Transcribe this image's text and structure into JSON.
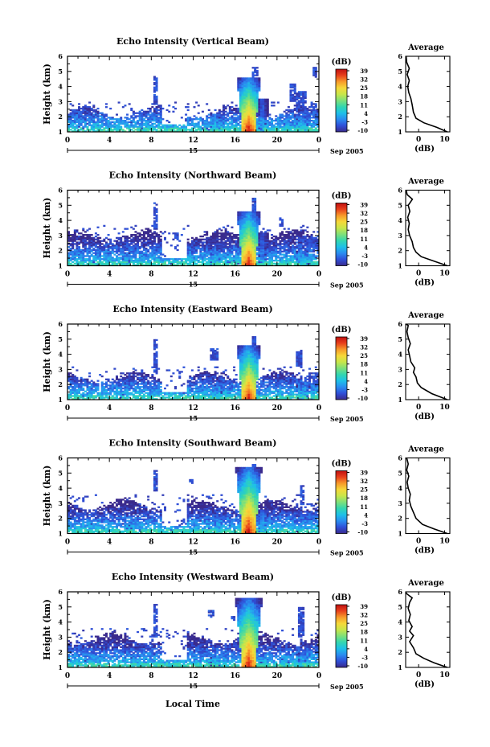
{
  "chart_data": {
    "type": "heatmap",
    "x_axis_label": "Local Time",
    "x_ticks": [
      "0",
      "4",
      "8",
      "12",
      "16",
      "20",
      "0"
    ],
    "x_range_hours": [
      0,
      24
    ],
    "date_day_label": "15",
    "date_label": "Sep 2005",
    "y_axis_label": "Height (km)",
    "y_ticks": [
      "1",
      "2",
      "3",
      "4",
      "5",
      "6"
    ],
    "y_range_km": [
      1,
      6
    ],
    "colorbar": {
      "title": "(dB)",
      "ticks": [
        "39",
        "32",
        "25",
        "18",
        "11",
        "4",
        "-3",
        "-10"
      ],
      "range_db": [
        -10,
        39
      ],
      "colors": [
        "#3a2a8c",
        "#2f4fd8",
        "#2a8cf0",
        "#1ec0e8",
        "#33d6b0",
        "#7ee07a",
        "#c8e64a",
        "#f6d83a",
        "#f79a2a",
        "#e8401c",
        "#c01010"
      ]
    },
    "average_panel": {
      "title": "Average",
      "xlabel": "(dB)",
      "x_ticks": [
        "0",
        "10"
      ],
      "x_range_db": [
        -5,
        12
      ],
      "y_range_km": [
        1,
        6
      ]
    },
    "panels": [
      {
        "title": "Echo Intensity (Vertical Beam)",
        "average_profile": [
          [
            1.0,
            11
          ],
          [
            1.3,
            7
          ],
          [
            1.6,
            2
          ],
          [
            1.9,
            -1
          ],
          [
            2.3,
            -2
          ],
          [
            2.8,
            -2.5
          ],
          [
            3.2,
            -3
          ],
          [
            3.6,
            -3.8
          ],
          [
            4.0,
            -4.2
          ],
          [
            4.4,
            -3.6
          ],
          [
            4.8,
            -4.4
          ],
          [
            5.2,
            -3.6
          ],
          [
            5.6,
            -4.6
          ],
          [
            6.0,
            -4.8
          ]
        ],
        "events": [
          {
            "t": 17.3,
            "w": 0.6,
            "top": 4.6,
            "peak": 39
          },
          {
            "t": 14.1,
            "w": 0.4,
            "top": 2.2,
            "peak": 8
          },
          {
            "t": 18.6,
            "w": 0.4,
            "top": 3.2,
            "peak": 0
          },
          {
            "t": 22.4,
            "w": 0.5,
            "top": 2.0,
            "peak": 10
          }
        ],
        "layer_top": 2.3,
        "patches": [
          {
            "t0": 8.2,
            "t1": 8.6,
            "h0": 2.8,
            "h1": 4.7
          },
          {
            "t0": 17.7,
            "t1": 18.1,
            "h0": 2.0,
            "h1": 5.3
          },
          {
            "t0": 21.9,
            "t1": 22.9,
            "h0": 2.3,
            "h1": 3.7
          },
          {
            "t0": 21.3,
            "t1": 21.8,
            "h0": 3.0,
            "h1": 4.2
          },
          {
            "t0": 23.4,
            "t1": 23.8,
            "h0": 4.6,
            "h1": 5.3
          },
          {
            "t0": 23.2,
            "t1": 23.8,
            "h0": 2.4,
            "h1": 2.9
          }
        ]
      },
      {
        "title": "Echo Intensity (Northward Beam)",
        "average_profile": [
          [
            1.0,
            11
          ],
          [
            1.3,
            6
          ],
          [
            1.6,
            1
          ],
          [
            1.9,
            -1
          ],
          [
            2.2,
            -2
          ],
          [
            2.6,
            -2.5
          ],
          [
            3.0,
            -3.5
          ],
          [
            3.4,
            -4
          ],
          [
            3.8,
            -3.6
          ],
          [
            4.2,
            -4.2
          ],
          [
            4.6,
            -3.4
          ],
          [
            5.0,
            -4
          ],
          [
            5.4,
            -2.4
          ],
          [
            5.7,
            -4.4
          ],
          [
            6.0,
            -4.8
          ]
        ],
        "events": [
          {
            "t": 17.3,
            "w": 0.6,
            "top": 4.6,
            "peak": 38
          },
          {
            "t": 14.1,
            "w": 0.4,
            "top": 2.2,
            "peak": 6
          },
          {
            "t": 18.6,
            "w": 0.4,
            "top": 3.2,
            "peak": 0
          },
          {
            "t": 22.4,
            "w": 0.5,
            "top": 2.0,
            "peak": 8
          },
          {
            "t": 5.6,
            "w": 0.3,
            "top": 1.9,
            "peak": 6
          }
        ],
        "layer_top": 3.0,
        "patches": [
          {
            "t0": 8.2,
            "t1": 8.6,
            "h0": 3.4,
            "h1": 5.2
          },
          {
            "t0": 17.6,
            "t1": 18.0,
            "h0": 2.2,
            "h1": 5.5
          },
          {
            "t0": 20.2,
            "t1": 20.6,
            "h0": 3.6,
            "h1": 4.2
          },
          {
            "t0": 21.8,
            "t1": 24.0,
            "h0": 2.3,
            "h1": 3.0
          },
          {
            "t0": 10.2,
            "t1": 10.6,
            "h0": 2.8,
            "h1": 3.2
          }
        ]
      },
      {
        "title": "Echo Intensity (Eastward Beam)",
        "average_profile": [
          [
            1.0,
            11
          ],
          [
            1.4,
            5
          ],
          [
            1.8,
            1
          ],
          [
            2.1,
            -0.5
          ],
          [
            2.5,
            -1
          ],
          [
            2.8,
            -2
          ],
          [
            3.1,
            -1.5
          ],
          [
            3.5,
            -3
          ],
          [
            3.9,
            -3.5
          ],
          [
            4.3,
            -4
          ],
          [
            4.7,
            -3.2
          ],
          [
            5.1,
            -4
          ],
          [
            5.5,
            -4.5
          ],
          [
            5.9,
            -4
          ],
          [
            6.0,
            -4.8
          ]
        ],
        "events": [
          {
            "t": 17.3,
            "w": 0.6,
            "top": 4.6,
            "peak": 38
          },
          {
            "t": 14.4,
            "w": 0.4,
            "top": 2.0,
            "peak": 4
          },
          {
            "t": 22.5,
            "w": 0.5,
            "top": 2.0,
            "peak": 4
          }
        ],
        "layer_top": 2.5,
        "patches": [
          {
            "t0": 8.2,
            "t1": 8.6,
            "h0": 2.8,
            "h1": 5.0
          },
          {
            "t0": 17.6,
            "t1": 18.0,
            "h0": 3.0,
            "h1": 5.2
          },
          {
            "t0": 21.8,
            "t1": 22.4,
            "h0": 3.2,
            "h1": 4.3
          },
          {
            "t0": 13.6,
            "t1": 14.4,
            "h0": 3.6,
            "h1": 4.4
          },
          {
            "t0": 23.0,
            "t1": 24.0,
            "h0": 2.0,
            "h1": 2.8
          }
        ]
      },
      {
        "title": "Echo Intensity (Southward Beam)",
        "average_profile": [
          [
            1.0,
            11
          ],
          [
            1.3,
            6
          ],
          [
            1.6,
            1.5
          ],
          [
            2.0,
            -1
          ],
          [
            2.4,
            -2
          ],
          [
            2.8,
            -3
          ],
          [
            3.2,
            -3.6
          ],
          [
            3.6,
            -3.2
          ],
          [
            4.0,
            -4
          ],
          [
            4.4,
            -4.4
          ],
          [
            4.8,
            -3.8
          ],
          [
            5.2,
            -4.6
          ],
          [
            5.6,
            -4
          ],
          [
            6.0,
            -4.6
          ]
        ],
        "events": [
          {
            "t": 17.3,
            "w": 0.6,
            "top": 5.4,
            "peak": 39
          },
          {
            "t": 14.4,
            "w": 0.4,
            "top": 2.0,
            "peak": 6
          },
          {
            "t": 18.6,
            "w": 0.4,
            "top": 2.6,
            "peak": 6
          }
        ],
        "layer_top": 2.9,
        "patches": [
          {
            "t0": 8.2,
            "t1": 8.6,
            "h0": 3.8,
            "h1": 5.2
          },
          {
            "t0": 17.6,
            "t1": 18.0,
            "h0": 3.0,
            "h1": 5.6
          },
          {
            "t0": 22.2,
            "t1": 22.7,
            "h0": 2.6,
            "h1": 4.2
          },
          {
            "t0": 11.6,
            "t1": 11.9,
            "h0": 4.3,
            "h1": 4.6
          },
          {
            "t0": 16.6,
            "t1": 17.0,
            "h0": 3.6,
            "h1": 4.4
          }
        ]
      },
      {
        "title": "Echo Intensity (Westward Beam)",
        "average_profile": [
          [
            1.0,
            11
          ],
          [
            1.3,
            6
          ],
          [
            1.6,
            2
          ],
          [
            1.9,
            -1
          ],
          [
            2.3,
            -2
          ],
          [
            2.7,
            -3.5
          ],
          [
            3.1,
            -2
          ],
          [
            3.4,
            -3.5
          ],
          [
            3.7,
            -2.5
          ],
          [
            4.1,
            -3.8
          ],
          [
            4.5,
            -3.2
          ],
          [
            4.9,
            -4
          ],
          [
            5.3,
            -3.5
          ],
          [
            5.6,
            -2.5
          ],
          [
            5.9,
            -4.8
          ],
          [
            6.0,
            -4.8
          ]
        ],
        "events": [
          {
            "t": 17.3,
            "w": 0.6,
            "top": 5.6,
            "peak": 38
          },
          {
            "t": 14.1,
            "w": 0.4,
            "top": 1.8,
            "peak": 2
          },
          {
            "t": 22.4,
            "w": 0.5,
            "top": 2.0,
            "peak": 4
          }
        ],
        "layer_top": 2.9,
        "patches": [
          {
            "t0": 8.2,
            "t1": 8.6,
            "h0": 3.0,
            "h1": 5.2
          },
          {
            "t0": 16.6,
            "t1": 17.0,
            "h0": 3.0,
            "h1": 5.4
          },
          {
            "t0": 22.0,
            "t1": 22.6,
            "h0": 3.0,
            "h1": 5.0
          },
          {
            "t0": 13.4,
            "t1": 14.0,
            "h0": 4.3,
            "h1": 4.8
          },
          {
            "t0": 15.6,
            "t1": 16.0,
            "h0": 4.0,
            "h1": 4.4
          }
        ]
      }
    ]
  }
}
